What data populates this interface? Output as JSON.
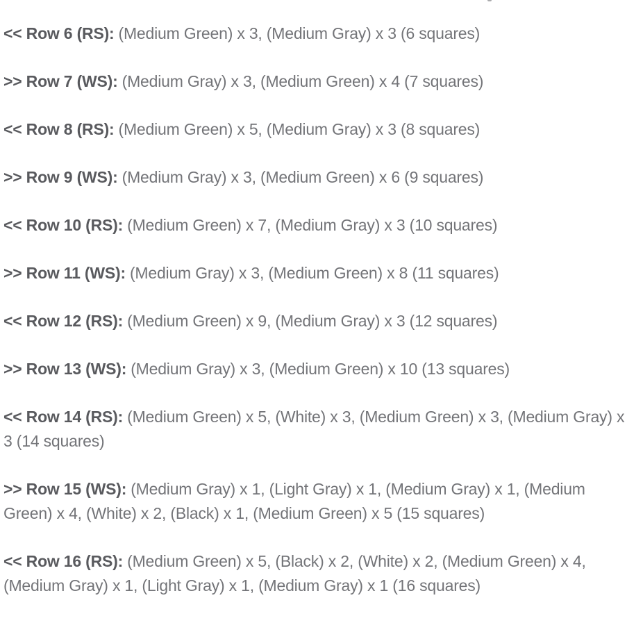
{
  "colors": {
    "background": "#ffffff",
    "label_text": "#595a5e",
    "body_text": "#737478"
  },
  "rows": [
    {
      "direction": "<<",
      "side": "RS",
      "number": 6,
      "label": "<< Row 6 (RS):",
      "text": "(Medium Green) x 3, (Medium Gray) x 3 (6 squares)"
    },
    {
      "direction": ">>",
      "side": "WS",
      "number": 7,
      "label": ">> Row 7 (WS):",
      "text": "(Medium Gray) x 3, (Medium Green) x 4 (7 squares)"
    },
    {
      "direction": "<<",
      "side": "RS",
      "number": 8,
      "label": "<< Row 8 (RS):",
      "text": "(Medium Green) x 5, (Medium Gray) x 3 (8 squares)"
    },
    {
      "direction": ">>",
      "side": "WS",
      "number": 9,
      "label": ">> Row 9 (WS):",
      "text": "(Medium Gray) x 3, (Medium Green) x 6 (9 squares)"
    },
    {
      "direction": "<<",
      "side": "RS",
      "number": 10,
      "label": "<< Row 10 (RS):",
      "text": "(Medium Green) x 7, (Medium Gray) x 3 (10 squares)"
    },
    {
      "direction": ">>",
      "side": "WS",
      "number": 11,
      "label": ">> Row 11 (WS):",
      "text": "(Medium Gray) x 3, (Medium Green) x 8 (11 squares)"
    },
    {
      "direction": "<<",
      "side": "RS",
      "number": 12,
      "label": "<< Row 12 (RS):",
      "text": "(Medium Green) x 9, (Medium Gray) x 3 (12 squares)"
    },
    {
      "direction": ">>",
      "side": "WS",
      "number": 13,
      "label": ">> Row 13 (WS):",
      "text": "(Medium Gray) x 3, (Medium Green) x 10 (13 squares)"
    },
    {
      "direction": "<<",
      "side": "RS",
      "number": 14,
      "label": "<< Row 14 (RS):",
      "text": "(Medium Green) x 5, (White) x 3, (Medium Green) x 3, (Medium Gray) x 3 (14 squares)"
    },
    {
      "direction": ">>",
      "side": "WS",
      "number": 15,
      "label": ">> Row 15 (WS):",
      "text": "(Medium Gray) x 1, (Light Gray) x 1, (Medium Gray) x 1, (Medium Green) x 4, (White) x 2, (Black) x 1, (Medium Green) x 5 (15 squares)"
    },
    {
      "direction": "<<",
      "side": "RS",
      "number": 16,
      "label": "<< Row 16 (RS):",
      "text": "(Medium Green) x 5, (Black) x 2, (White) x 2, (Medium Green) x 4, (Medium Gray) x 1, (Light Gray) x 1, (Medium Gray) x 1 (16 squares)"
    }
  ]
}
